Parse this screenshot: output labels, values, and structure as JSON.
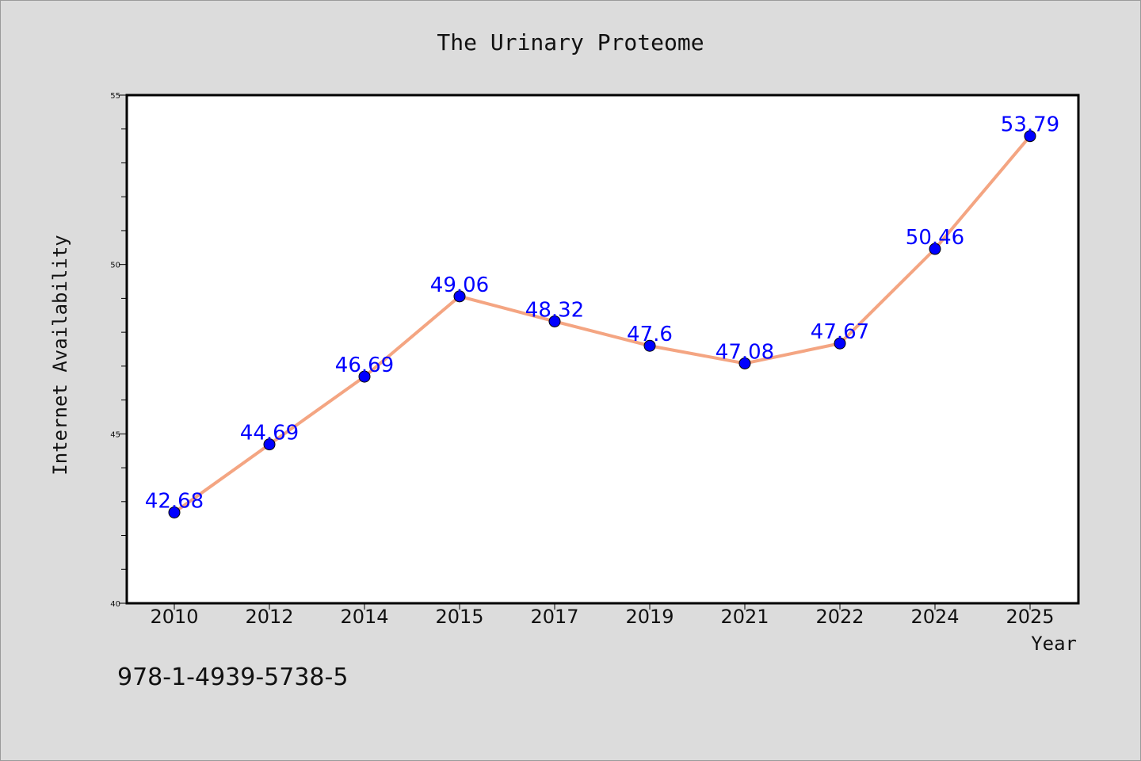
{
  "chart_data": {
    "type": "line",
    "title": "The Urinary Proteome",
    "xlabel": "Year",
    "ylabel": "Internet Availability",
    "categories": [
      "2010",
      "2012",
      "2014",
      "2015",
      "2017",
      "2019",
      "2021",
      "2022",
      "2024",
      "2025"
    ],
    "values": [
      42.68,
      44.69,
      46.69,
      49.06,
      48.32,
      47.6,
      47.08,
      47.67,
      50.46,
      53.79
    ],
    "data_labels": [
      "42.68",
      "44.69",
      "46.69",
      "49.06",
      "48.32",
      "47.6",
      "47.08",
      "47.67",
      "50.46",
      "53.79"
    ],
    "ylim": [
      40,
      55
    ],
    "y_ticks": [
      40,
      45,
      50,
      55
    ],
    "grid": false,
    "legend": "none",
    "line_color": "#f4a582",
    "marker_color": "#0000ff",
    "label_color": "#0000ff"
  },
  "footer": {
    "isbn": "978-1-4939-5738-5"
  }
}
